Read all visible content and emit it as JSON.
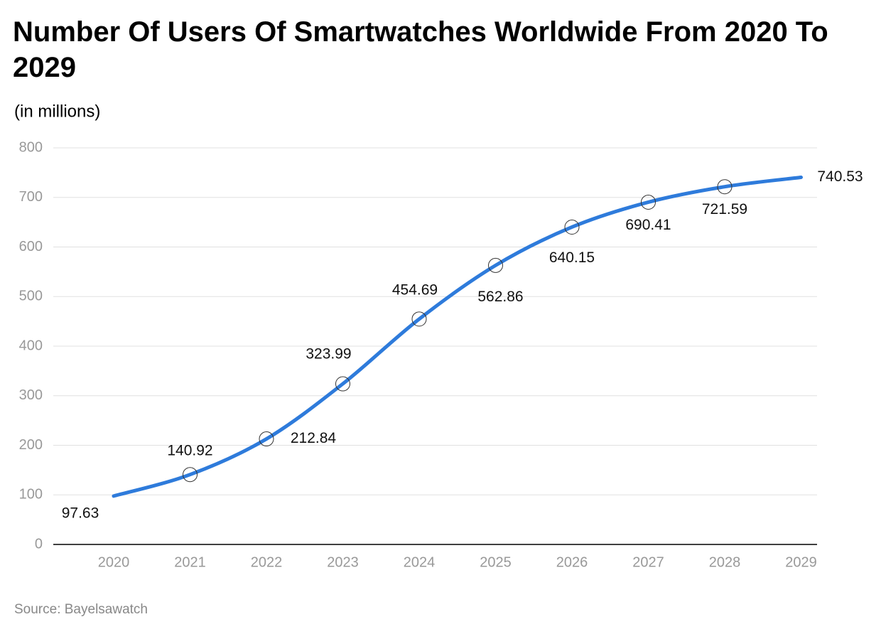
{
  "chart_data": {
    "type": "line",
    "title": "Number Of Users Of Smartwatches Worldwide From 2020 To 2029",
    "subtitle": "(in millions)",
    "source": "Source: Bayelsawatch",
    "categories": [
      "2020",
      "2021",
      "2022",
      "2023",
      "2024",
      "2025",
      "2026",
      "2027",
      "2028",
      "2029"
    ],
    "values": [
      97.63,
      140.92,
      212.84,
      323.99,
      454.69,
      562.86,
      640.15,
      690.41,
      721.59,
      740.53
    ],
    "color": "#2e7bdb",
    "ylim": [
      0,
      800
    ],
    "yticks": [
      0,
      100,
      200,
      300,
      400,
      500,
      600,
      700,
      800
    ],
    "grid": true
  }
}
